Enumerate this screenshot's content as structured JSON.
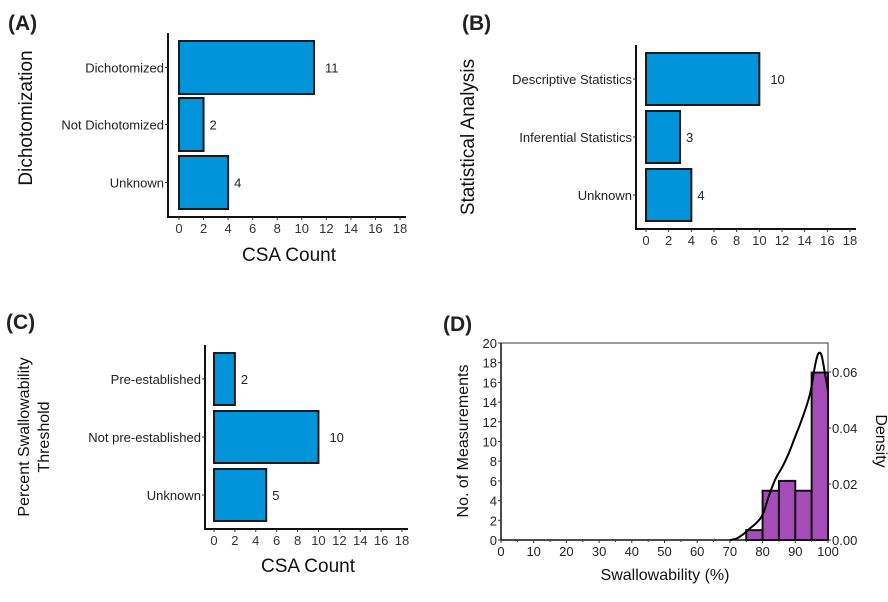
{
  "chart_data": [
    {
      "id": "A",
      "type": "bar",
      "orientation": "horizontal",
      "panel_label": "(A)",
      "title": "",
      "ylabel": "Dichotomization",
      "xlabel": "CSA Count",
      "categories": [
        "Dichotomized",
        "Not Dichotomized",
        "Unknown"
      ],
      "values": [
        11,
        2,
        4
      ],
      "xlim": [
        0,
        18
      ],
      "xticks": [
        0,
        2,
        4,
        6,
        8,
        10,
        12,
        14,
        16,
        18
      ],
      "grid": false,
      "bar_color": "#0095DB"
    },
    {
      "id": "B",
      "type": "bar",
      "orientation": "horizontal",
      "panel_label": "(B)",
      "title": "",
      "ylabel": "Statistical Analysis",
      "xlabel": "",
      "categories": [
        "Descriptive Statistics",
        "Inferential Statistics",
        "Unknown"
      ],
      "values": [
        10,
        3,
        4
      ],
      "xlim": [
        0,
        18
      ],
      "xticks": [
        0,
        2,
        4,
        6,
        8,
        10,
        12,
        14,
        16,
        18
      ],
      "grid": false,
      "bar_color": "#0095DB"
    },
    {
      "id": "C",
      "type": "bar",
      "orientation": "horizontal",
      "panel_label": "(C)",
      "title": "",
      "ylabel": [
        "Percent Swallowability",
        "Threshold"
      ],
      "xlabel": "CSA Count",
      "categories": [
        "Pre-established",
        "Not pre-established",
        "Unknown"
      ],
      "values": [
        2,
        10,
        5
      ],
      "xlim": [
        0,
        18
      ],
      "xticks": [
        0,
        2,
        4,
        6,
        8,
        10,
        12,
        14,
        16,
        18
      ],
      "grid": false,
      "bar_color": "#0095DB"
    },
    {
      "id": "D",
      "type": "histogram",
      "panel_label": "(D)",
      "title": "",
      "xlabel": "Swallowability (%)",
      "ylabel": "No. of Measurements",
      "y2label": "Density",
      "bins": [
        {
          "from": 75,
          "to": 80,
          "count": 1
        },
        {
          "from": 80,
          "to": 85,
          "count": 5
        },
        {
          "from": 85,
          "to": 90,
          "count": 6
        },
        {
          "from": 90,
          "to": 95,
          "count": 5
        },
        {
          "from": 95,
          "to": 100,
          "count": 17
        }
      ],
      "xlim": [
        0,
        100
      ],
      "ylim": [
        0,
        20
      ],
      "y2lim": [
        0,
        0.07
      ],
      "xticks": [
        0,
        10,
        20,
        30,
        40,
        50,
        60,
        70,
        80,
        90,
        100
      ],
      "yticks": [
        0,
        2,
        4,
        6,
        8,
        10,
        12,
        14,
        16,
        18,
        20
      ],
      "y2ticks": [
        "0.00",
        "0.02",
        "0.04",
        "0.06"
      ],
      "density_curve": [
        [
          70,
          0.0
        ],
        [
          72,
          0.0005
        ],
        [
          74,
          0.002
        ],
        [
          76,
          0.004
        ],
        [
          78,
          0.006
        ],
        [
          80,
          0.009
        ],
        [
          82,
          0.016
        ],
        [
          84,
          0.022
        ],
        [
          86,
          0.026
        ],
        [
          88,
          0.031
        ],
        [
          90,
          0.037
        ],
        [
          92,
          0.043
        ],
        [
          94,
          0.05
        ],
        [
          95,
          0.055
        ],
        [
          96,
          0.062
        ],
        [
          97,
          0.0665
        ],
        [
          98,
          0.066
        ],
        [
          99,
          0.06
        ],
        [
          100,
          0.053
        ]
      ],
      "grid": false,
      "bar_color": "#A64CB8",
      "curve_color": "#000000"
    }
  ]
}
